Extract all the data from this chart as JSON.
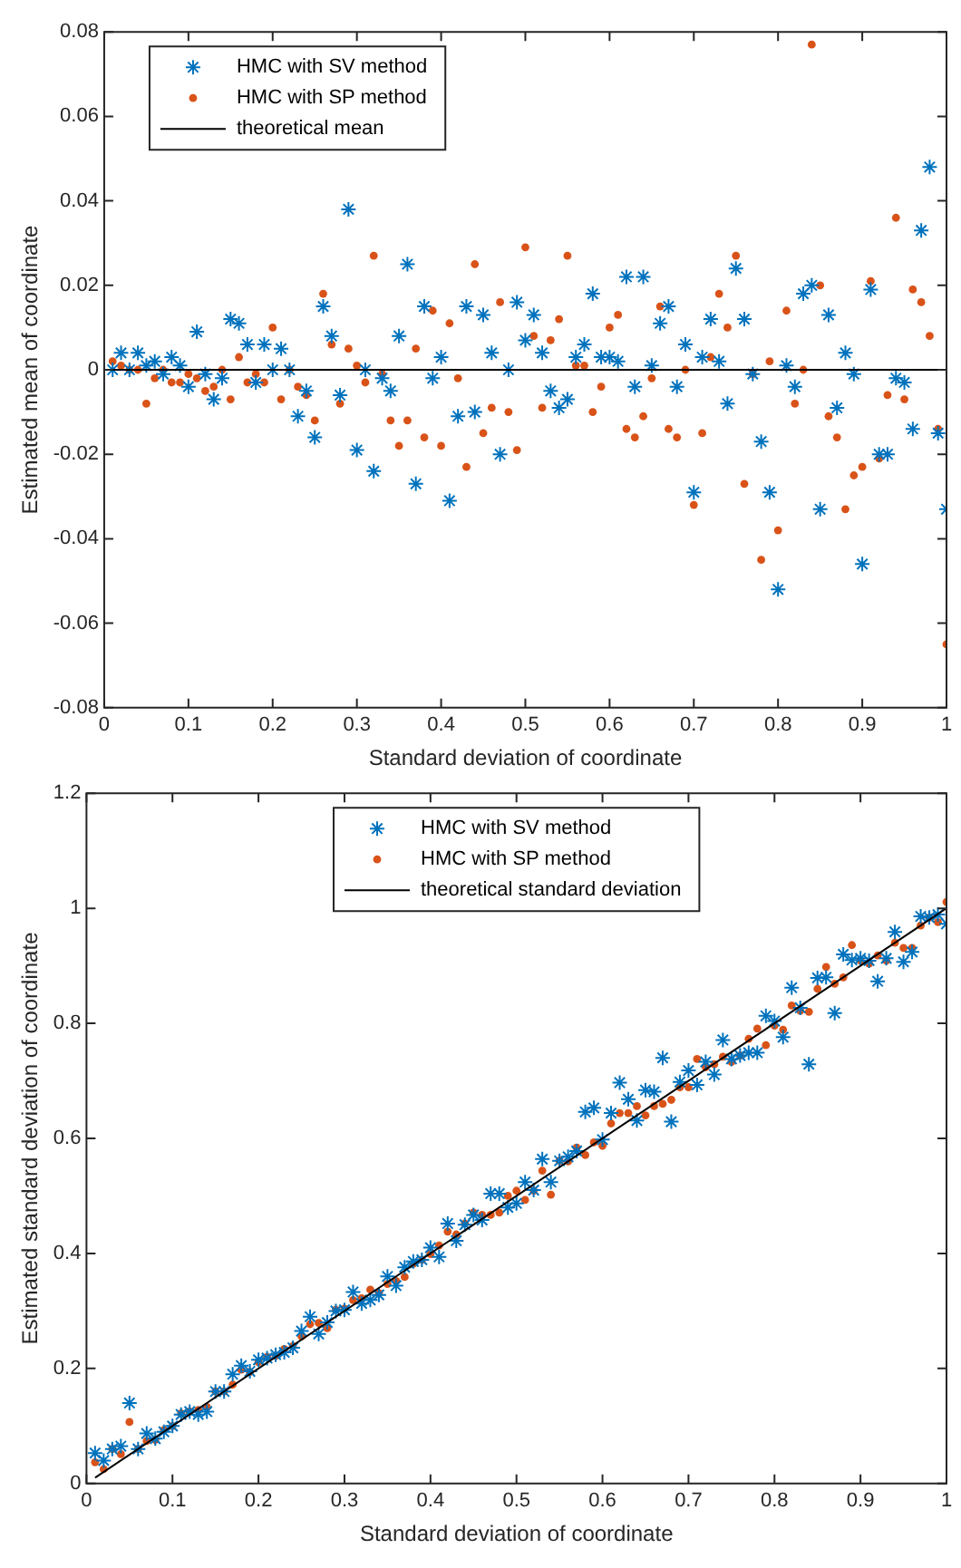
{
  "chart_data": [
    {
      "type": "scatter",
      "xlabel": "Standard deviation of coordinate",
      "ylabel": "Estimated mean of coordinate",
      "xlim": [
        0,
        1
      ],
      "xticks": [
        0,
        0.1,
        0.2,
        0.3,
        0.4,
        0.5,
        0.6,
        0.7,
        0.8,
        0.9,
        1
      ],
      "ylim": [
        -0.08,
        0.08
      ],
      "yticks": [
        -0.08,
        -0.06,
        -0.04,
        -0.02,
        0,
        0.02,
        0.04,
        0.06,
        0.08
      ],
      "grid": false,
      "legend": "top left",
      "x": [
        0.01,
        0.02,
        0.03,
        0.04,
        0.05,
        0.06,
        0.07,
        0.08,
        0.09,
        0.1,
        0.11,
        0.12,
        0.13,
        0.14,
        0.15,
        0.16,
        0.17,
        0.18,
        0.19,
        0.2,
        0.21,
        0.22,
        0.23,
        0.24,
        0.25,
        0.26,
        0.27,
        0.28,
        0.29,
        0.3,
        0.31,
        0.32,
        0.33,
        0.34,
        0.35,
        0.36,
        0.37,
        0.38,
        0.39,
        0.4,
        0.41,
        0.42,
        0.43,
        0.44,
        0.45,
        0.46,
        0.47,
        0.48,
        0.49,
        0.5,
        0.51,
        0.52,
        0.53,
        0.54,
        0.55,
        0.56,
        0.57,
        0.58,
        0.59,
        0.6,
        0.61,
        0.62,
        0.63,
        0.64,
        0.65,
        0.66,
        0.67,
        0.68,
        0.69,
        0.7,
        0.71,
        0.72,
        0.73,
        0.74,
        0.75,
        0.76,
        0.77,
        0.78,
        0.79,
        0.8,
        0.81,
        0.82,
        0.83,
        0.84,
        0.85,
        0.86,
        0.87,
        0.88,
        0.89,
        0.9,
        0.91,
        0.92,
        0.93,
        0.94,
        0.95,
        0.96,
        0.97,
        0.98,
        0.99,
        1
      ],
      "series": [
        {
          "name": "HMC with SV method",
          "type": "scatter",
          "marker": "cross",
          "color": "#0072bd",
          "values": [
            0,
            0.004,
            0,
            0.004,
            0.001,
            0.002,
            -0.001,
            0.003,
            0.001,
            -0.004,
            0.009,
            -0.001,
            -0.007,
            -0.002,
            0.012,
            0.011,
            0.006,
            -0.003,
            0.006,
            0,
            0.005,
            0,
            -0.011,
            -0.005,
            -0.016,
            0.015,
            0.008,
            -0.006,
            0.038,
            -0.019,
            0,
            -0.024,
            -0.002,
            -0.005,
            0.008,
            0.025,
            -0.027,
            0.015,
            -0.002,
            0.003,
            -0.031,
            -0.011,
            0.015,
            -0.01,
            0.013,
            0.004,
            -0.02,
            0,
            0.016,
            0.007,
            0.013,
            0.004,
            -0.005,
            -0.009,
            -0.007,
            0.003,
            0.006,
            0.018,
            0.003,
            0.003,
            0.002,
            0.022,
            -0.004,
            0.022,
            0.001,
            0.011,
            0.015,
            -0.004,
            0.006,
            -0.029,
            0.003,
            0.012,
            0.002,
            -0.008,
            0.024,
            0.012,
            -0.001,
            -0.017,
            -0.029,
            -0.052,
            0.001,
            -0.004,
            0.018,
            0.02,
            -0.033,
            0.013,
            -0.009,
            0.004,
            -0.001,
            -0.046,
            0.019,
            -0.02,
            -0.02,
            -0.002,
            -0.003,
            -0.014,
            0.033,
            0.048,
            -0.015,
            -0.033
          ]
        },
        {
          "name": "HMC with SP method",
          "type": "scatter",
          "marker": "circle",
          "color": "#d95319",
          "values": [
            0.002,
            0.001,
            0,
            0,
            -0.008,
            -0.002,
            0,
            -0.003,
            -0.003,
            -0.001,
            -0.002,
            -0.005,
            -0.004,
            0,
            -0.007,
            0.003,
            -0.003,
            -0.001,
            -0.003,
            0.01,
            -0.007,
            0,
            -0.004,
            -0.006,
            -0.012,
            0.018,
            0.006,
            -0.008,
            0.005,
            0.001,
            -0.003,
            0.027,
            -0.001,
            -0.012,
            -0.018,
            -0.012,
            0.005,
            -0.016,
            0.014,
            -0.018,
            0.011,
            -0.002,
            -0.023,
            0.025,
            -0.015,
            -0.009,
            0.016,
            -0.01,
            -0.019,
            0.029,
            0.008,
            -0.009,
            0.007,
            0.012,
            0.027,
            0.001,
            0.001,
            -0.01,
            -0.004,
            0.01,
            0.013,
            -0.014,
            -0.016,
            -0.011,
            -0.002,
            0.015,
            -0.014,
            -0.016,
            0,
            -0.032,
            -0.015,
            0.003,
            0.018,
            0.01,
            0.027,
            -0.027,
            -0.001,
            -0.045,
            0.002,
            -0.038,
            0.014,
            -0.008,
            0,
            0.077,
            0.02,
            -0.011,
            -0.016,
            -0.033,
            -0.025,
            -0.023,
            0.021,
            -0.021,
            -0.006,
            0.036,
            -0.007,
            0.019,
            0.016,
            0.008,
            -0.014,
            -0.065
          ]
        },
        {
          "name": "theoretical mean",
          "type": "line",
          "marker": "none",
          "color": "#000000",
          "x": [
            0,
            1
          ],
          "values": [
            0,
            0
          ]
        }
      ]
    },
    {
      "type": "scatter",
      "xlabel": "Standard deviation of coordinate",
      "ylabel": "Estimated standard deviation of coordinate",
      "xlim": [
        0,
        1
      ],
      "xticks": [
        0,
        0.1,
        0.2,
        0.3,
        0.4,
        0.5,
        0.6,
        0.7,
        0.8,
        0.9,
        1
      ],
      "ylim": [
        0,
        1.2
      ],
      "yticks": [
        0,
        0.2,
        0.4,
        0.6,
        0.8,
        1,
        1.2
      ],
      "grid": false,
      "legend": "top",
      "x": [
        0.01,
        0.02,
        0.03,
        0.04,
        0.05,
        0.06,
        0.07,
        0.08,
        0.09,
        0.1,
        0.11,
        0.12,
        0.13,
        0.14,
        0.15,
        0.16,
        0.17,
        0.18,
        0.19,
        0.2,
        0.21,
        0.22,
        0.23,
        0.24,
        0.25,
        0.26,
        0.27,
        0.28,
        0.29,
        0.3,
        0.31,
        0.32,
        0.33,
        0.34,
        0.35,
        0.36,
        0.37,
        0.38,
        0.39,
        0.4,
        0.41,
        0.42,
        0.43,
        0.44,
        0.45,
        0.46,
        0.47,
        0.48,
        0.49,
        0.5,
        0.51,
        0.52,
        0.53,
        0.54,
        0.55,
        0.56,
        0.57,
        0.58,
        0.59,
        0.6,
        0.61,
        0.62,
        0.63,
        0.64,
        0.65,
        0.66,
        0.67,
        0.68,
        0.69,
        0.7,
        0.71,
        0.72,
        0.73,
        0.74,
        0.75,
        0.76,
        0.77,
        0.78,
        0.79,
        0.8,
        0.81,
        0.82,
        0.83,
        0.84,
        0.85,
        0.86,
        0.87,
        0.88,
        0.89,
        0.9,
        0.91,
        0.92,
        0.93,
        0.94,
        0.95,
        0.96,
        0.97,
        0.98,
        0.99,
        1
      ],
      "series": [
        {
          "name": "HMC with SV method",
          "type": "scatter",
          "marker": "cross",
          "color": "#0072bd",
          "values": [
            0.053,
            0.04,
            0.06,
            0.065,
            0.14,
            0.06,
            0.087,
            0.078,
            0.09,
            0.1,
            0.12,
            0.125,
            0.12,
            0.125,
            0.16,
            0.16,
            0.19,
            0.205,
            0.195,
            0.215,
            0.218,
            0.224,
            0.228,
            0.236,
            0.265,
            0.29,
            0.26,
            0.28,
            0.3,
            0.302,
            0.333,
            0.313,
            0.319,
            0.328,
            0.36,
            0.344,
            0.376,
            0.386,
            0.389,
            0.41,
            0.394,
            0.452,
            0.422,
            0.45,
            0.467,
            0.458,
            0.504,
            0.504,
            0.48,
            0.487,
            0.524,
            0.51,
            0.564,
            0.524,
            0.561,
            0.568,
            0.578,
            0.646,
            0.653,
            0.598,
            0.644,
            0.697,
            0.668,
            0.631,
            0.684,
            0.681,
            0.74,
            0.629,
            0.698,
            0.718,
            0.693,
            0.733,
            0.711,
            0.771,
            0.738,
            0.744,
            0.749,
            0.749,
            0.813,
            0.804,
            0.776,
            0.862,
            0.827,
            0.729,
            0.879,
            0.88,
            0.818,
            0.92,
            0.91,
            0.913,
            0.909,
            0.873,
            0.913,
            0.959,
            0.907,
            0.924,
            0.986,
            0.984,
            0.989,
            0.973
          ]
        },
        {
          "name": "HMC with SP method",
          "type": "scatter",
          "marker": "circle",
          "color": "#d95319",
          "values": [
            0.037,
            0.025,
            0.06,
            0.051,
            0.107,
            0.06,
            0.074,
            0.076,
            0.093,
            0.1,
            0.122,
            0.125,
            0.128,
            0.133,
            0.16,
            0.16,
            0.172,
            0.198,
            0.194,
            0.211,
            0.22,
            0.222,
            0.234,
            0.239,
            0.256,
            0.277,
            0.279,
            0.27,
            0.302,
            0.304,
            0.319,
            0.322,
            0.337,
            0.331,
            0.347,
            0.352,
            0.359,
            0.382,
            0.389,
            0.399,
            0.414,
            0.438,
            0.433,
            0.452,
            0.471,
            0.467,
            0.467,
            0.471,
            0.5,
            0.509,
            0.493,
            0.509,
            0.544,
            0.502,
            0.561,
            0.56,
            0.584,
            0.571,
            0.593,
            0.587,
            0.626,
            0.644,
            0.644,
            0.656,
            0.64,
            0.656,
            0.66,
            0.667,
            0.689,
            0.689,
            0.738,
            0.724,
            0.729,
            0.742,
            0.733,
            0.744,
            0.773,
            0.791,
            0.762,
            0.796,
            0.789,
            0.831,
            0.822,
            0.82,
            0.86,
            0.898,
            0.869,
            0.88,
            0.936,
            0.909,
            0.904,
            0.918,
            0.909,
            0.94,
            0.931,
            0.931,
            0.97,
            0.984,
            0.976,
            1.011
          ]
        },
        {
          "name": "theoretical standard deviation",
          "type": "line",
          "marker": "none",
          "color": "#000000",
          "x": [
            0.01,
            1
          ],
          "values": [
            0.01,
            1
          ]
        }
      ]
    }
  ]
}
